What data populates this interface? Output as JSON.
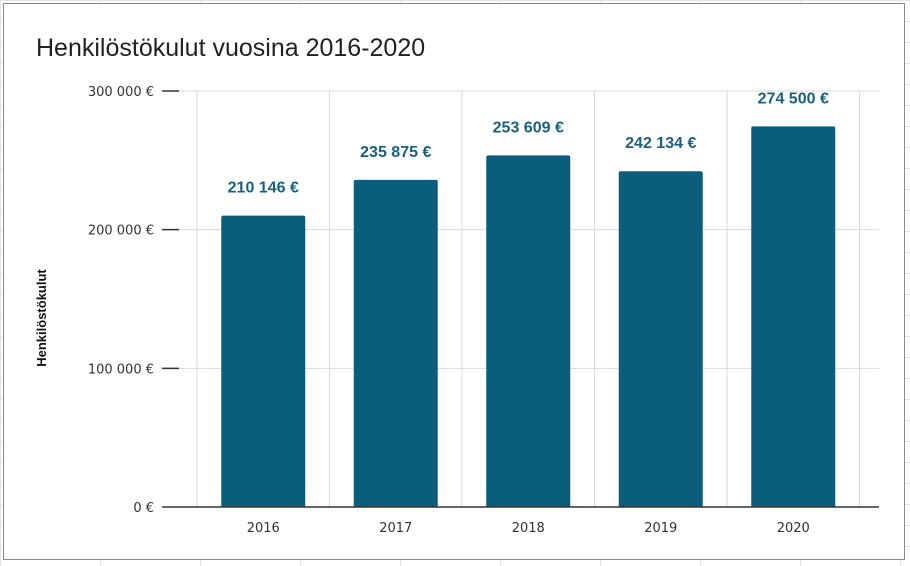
{
  "chart_data": {
    "type": "bar",
    "title": "Henkilöstökulut vuosina 2016-2020",
    "xlabel": "",
    "ylabel": "Henkilöstökulut",
    "categories": [
      "2016",
      "2017",
      "2018",
      "2019",
      "2020"
    ],
    "values": [
      210146,
      235875,
      253609,
      242134,
      274500
    ],
    "data_labels": [
      "210 146 €",
      "235 875 €",
      "253 609 €",
      "242 134 €",
      "274 500 €"
    ],
    "ylim": [
      0,
      300000
    ],
    "yticks": [
      0,
      100000,
      200000,
      300000
    ],
    "ytick_labels": [
      "0 €",
      "100 000 €",
      "200 000 €",
      "300 000 €"
    ],
    "grid": true,
    "legend": "none",
    "colors": {
      "bar": "#0a5e7c",
      "data_label": "#18607f"
    }
  }
}
